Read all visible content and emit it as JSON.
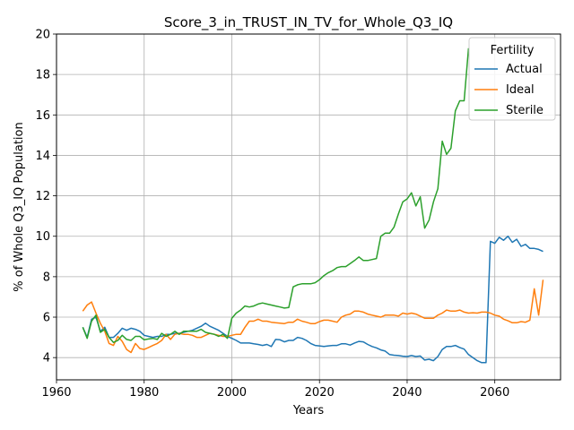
{
  "chart_data": {
    "type": "line",
    "title": "Score_3_in_TRUST_IN_TV_for_Whole_Q3_IQ",
    "xlabel": "Years",
    "ylabel": "% of Whole Q3_IQ Population",
    "xlim": [
      1960,
      2075
    ],
    "ylim": [
      2.9,
      20.0
    ],
    "x_ticks": [
      1960,
      1980,
      2000,
      2020,
      2040,
      2060
    ],
    "y_ticks": [
      4,
      6,
      8,
      10,
      12,
      14,
      16,
      18,
      20
    ],
    "grid": true,
    "legend": {
      "title": "Fertility",
      "position": "top-right"
    },
    "series": [
      {
        "name": "Actual",
        "color": "#1f77b4",
        "points": [
          [
            1966,
            5.5
          ],
          [
            1967,
            5.0
          ],
          [
            1968,
            5.9
          ],
          [
            1969,
            6.0
          ],
          [
            1970,
            5.3
          ],
          [
            1971,
            5.5
          ],
          [
            1972,
            5.0
          ],
          [
            1973,
            5.0
          ],
          [
            1974,
            5.2
          ],
          [
            1975,
            5.45
          ],
          [
            1976,
            5.35
          ],
          [
            1977,
            5.45
          ],
          [
            1978,
            5.4
          ],
          [
            1979,
            5.3
          ],
          [
            1980,
            5.1
          ],
          [
            1981,
            5.05
          ],
          [
            1982,
            5.0
          ],
          [
            1983,
            5.05
          ],
          [
            1984,
            5.05
          ],
          [
            1985,
            5.15
          ],
          [
            1986,
            5.15
          ],
          [
            1987,
            5.2
          ],
          [
            1988,
            5.2
          ],
          [
            1989,
            5.25
          ],
          [
            1990,
            5.3
          ],
          [
            1991,
            5.35
          ],
          [
            1992,
            5.45
          ],
          [
            1993,
            5.55
          ],
          [
            1994,
            5.7
          ],
          [
            1995,
            5.55
          ],
          [
            1996,
            5.45
          ],
          [
            1997,
            5.35
          ],
          [
            1998,
            5.2
          ],
          [
            1999,
            5.05
          ],
          [
            2000,
            4.95
          ],
          [
            2001,
            4.85
          ],
          [
            2002,
            4.72
          ],
          [
            2003,
            4.72
          ],
          [
            2004,
            4.72
          ],
          [
            2005,
            4.68
          ],
          [
            2006,
            4.65
          ],
          [
            2007,
            4.6
          ],
          [
            2008,
            4.65
          ],
          [
            2009,
            4.55
          ],
          [
            2010,
            4.9
          ],
          [
            2011,
            4.88
          ],
          [
            2012,
            4.78
          ],
          [
            2013,
            4.85
          ],
          [
            2014,
            4.85
          ],
          [
            2015,
            5.0
          ],
          [
            2016,
            4.95
          ],
          [
            2017,
            4.85
          ],
          [
            2018,
            4.7
          ],
          [
            2019,
            4.6
          ],
          [
            2020,
            4.58
          ],
          [
            2021,
            4.55
          ],
          [
            2022,
            4.58
          ],
          [
            2023,
            4.6
          ],
          [
            2024,
            4.6
          ],
          [
            2025,
            4.68
          ],
          [
            2026,
            4.68
          ],
          [
            2027,
            4.62
          ],
          [
            2028,
            4.72
          ],
          [
            2029,
            4.8
          ],
          [
            2030,
            4.78
          ],
          [
            2031,
            4.65
          ],
          [
            2032,
            4.55
          ],
          [
            2033,
            4.48
          ],
          [
            2034,
            4.38
          ],
          [
            2035,
            4.32
          ],
          [
            2036,
            4.15
          ],
          [
            2037,
            4.12
          ],
          [
            2038,
            4.1
          ],
          [
            2039,
            4.07
          ],
          [
            2040,
            4.05
          ],
          [
            2041,
            4.1
          ],
          [
            2042,
            4.05
          ],
          [
            2043,
            4.08
          ],
          [
            2044,
            3.88
          ],
          [
            2045,
            3.92
          ],
          [
            2046,
            3.85
          ],
          [
            2047,
            4.05
          ],
          [
            2048,
            4.4
          ],
          [
            2049,
            4.55
          ],
          [
            2050,
            4.55
          ],
          [
            2051,
            4.6
          ],
          [
            2052,
            4.5
          ],
          [
            2053,
            4.42
          ],
          [
            2054,
            4.15
          ],
          [
            2055,
            4.0
          ],
          [
            2056,
            3.85
          ],
          [
            2057,
            3.75
          ],
          [
            2058,
            3.75
          ],
          [
            2059,
            9.75
          ],
          [
            2060,
            9.65
          ],
          [
            2061,
            9.95
          ],
          [
            2062,
            9.8
          ],
          [
            2063,
            10.0
          ],
          [
            2064,
            9.7
          ],
          [
            2065,
            9.85
          ],
          [
            2066,
            9.5
          ],
          [
            2067,
            9.6
          ],
          [
            2068,
            9.4
          ],
          [
            2069,
            9.4
          ],
          [
            2070,
            9.35
          ],
          [
            2071,
            9.25
          ]
        ]
      },
      {
        "name": "Ideal",
        "color": "#ff7f0e",
        "points": [
          [
            1966,
            6.3
          ],
          [
            1967,
            6.6
          ],
          [
            1968,
            6.75
          ],
          [
            1969,
            6.2
          ],
          [
            1970,
            5.7
          ],
          [
            1971,
            5.3
          ],
          [
            1972,
            4.7
          ],
          [
            1973,
            4.6
          ],
          [
            1974,
            5.05
          ],
          [
            1975,
            4.8
          ],
          [
            1976,
            4.4
          ],
          [
            1977,
            4.25
          ],
          [
            1978,
            4.7
          ],
          [
            1979,
            4.45
          ],
          [
            1980,
            4.4
          ],
          [
            1981,
            4.5
          ],
          [
            1982,
            4.6
          ],
          [
            1983,
            4.7
          ],
          [
            1984,
            4.85
          ],
          [
            1985,
            5.15
          ],
          [
            1986,
            4.9
          ],
          [
            1987,
            5.15
          ],
          [
            1988,
            5.2
          ],
          [
            1989,
            5.15
          ],
          [
            1990,
            5.15
          ],
          [
            1991,
            5.1
          ],
          [
            1992,
            5.0
          ],
          [
            1993,
            5.0
          ],
          [
            1994,
            5.1
          ],
          [
            1995,
            5.2
          ],
          [
            1996,
            5.15
          ],
          [
            1997,
            5.1
          ],
          [
            1998,
            5.05
          ],
          [
            1999,
            5.05
          ],
          [
            2000,
            5.1
          ],
          [
            2001,
            5.15
          ],
          [
            2002,
            5.15
          ],
          [
            2003,
            5.5
          ],
          [
            2004,
            5.8
          ],
          [
            2005,
            5.8
          ],
          [
            2006,
            5.9
          ],
          [
            2007,
            5.8
          ],
          [
            2008,
            5.8
          ],
          [
            2009,
            5.75
          ],
          [
            2010,
            5.72
          ],
          [
            2011,
            5.7
          ],
          [
            2012,
            5.68
          ],
          [
            2013,
            5.75
          ],
          [
            2014,
            5.75
          ],
          [
            2015,
            5.9
          ],
          [
            2016,
            5.8
          ],
          [
            2017,
            5.75
          ],
          [
            2018,
            5.68
          ],
          [
            2019,
            5.68
          ],
          [
            2020,
            5.78
          ],
          [
            2021,
            5.85
          ],
          [
            2022,
            5.85
          ],
          [
            2023,
            5.8
          ],
          [
            2024,
            5.75
          ],
          [
            2025,
            6.0
          ],
          [
            2026,
            6.1
          ],
          [
            2027,
            6.15
          ],
          [
            2028,
            6.3
          ],
          [
            2029,
            6.3
          ],
          [
            2030,
            6.25
          ],
          [
            2031,
            6.15
          ],
          [
            2032,
            6.1
          ],
          [
            2033,
            6.05
          ],
          [
            2034,
            6.0
          ],
          [
            2035,
            6.1
          ],
          [
            2036,
            6.1
          ],
          [
            2037,
            6.1
          ],
          [
            2038,
            6.05
          ],
          [
            2039,
            6.2
          ],
          [
            2040,
            6.15
          ],
          [
            2041,
            6.2
          ],
          [
            2042,
            6.15
          ],
          [
            2043,
            6.05
          ],
          [
            2044,
            5.95
          ],
          [
            2045,
            5.95
          ],
          [
            2046,
            5.95
          ],
          [
            2047,
            6.1
          ],
          [
            2048,
            6.2
          ],
          [
            2049,
            6.35
          ],
          [
            2050,
            6.3
          ],
          [
            2051,
            6.3
          ],
          [
            2052,
            6.35
          ],
          [
            2053,
            6.25
          ],
          [
            2054,
            6.2
          ],
          [
            2055,
            6.22
          ],
          [
            2056,
            6.2
          ],
          [
            2057,
            6.25
          ],
          [
            2058,
            6.25
          ],
          [
            2059,
            6.2
          ],
          [
            2060,
            6.1
          ],
          [
            2061,
            6.05
          ],
          [
            2062,
            5.9
          ],
          [
            2063,
            5.82
          ],
          [
            2064,
            5.72
          ],
          [
            2065,
            5.72
          ],
          [
            2066,
            5.78
          ],
          [
            2067,
            5.75
          ],
          [
            2068,
            5.85
          ],
          [
            2069,
            7.4
          ],
          [
            2070,
            6.1
          ],
          [
            2071,
            7.85
          ]
        ]
      },
      {
        "name": "Sterile",
        "color": "#2ca02c",
        "points": [
          [
            1966,
            5.5
          ],
          [
            1967,
            4.95
          ],
          [
            1968,
            5.8
          ],
          [
            1969,
            6.1
          ],
          [
            1970,
            5.25
          ],
          [
            1971,
            5.4
          ],
          [
            1972,
            5.0
          ],
          [
            1973,
            4.75
          ],
          [
            1974,
            4.85
          ],
          [
            1975,
            5.1
          ],
          [
            1976,
            4.9
          ],
          [
            1977,
            4.85
          ],
          [
            1978,
            5.05
          ],
          [
            1979,
            5.05
          ],
          [
            1980,
            4.88
          ],
          [
            1981,
            4.92
          ],
          [
            1982,
            4.95
          ],
          [
            1983,
            4.9
          ],
          [
            1984,
            5.2
          ],
          [
            1985,
            5.05
          ],
          [
            1986,
            5.15
          ],
          [
            1987,
            5.3
          ],
          [
            1988,
            5.15
          ],
          [
            1989,
            5.3
          ],
          [
            1990,
            5.3
          ],
          [
            1991,
            5.3
          ],
          [
            1992,
            5.3
          ],
          [
            1993,
            5.4
          ],
          [
            1994,
            5.25
          ],
          [
            1995,
            5.2
          ],
          [
            1996,
            5.15
          ],
          [
            1997,
            5.05
          ],
          [
            1998,
            5.15
          ],
          [
            1999,
            4.95
          ],
          [
            2000,
            5.95
          ],
          [
            2001,
            6.2
          ],
          [
            2002,
            6.35
          ],
          [
            2003,
            6.55
          ],
          [
            2004,
            6.5
          ],
          [
            2005,
            6.55
          ],
          [
            2006,
            6.65
          ],
          [
            2007,
            6.7
          ],
          [
            2008,
            6.65
          ],
          [
            2009,
            6.6
          ],
          [
            2010,
            6.55
          ],
          [
            2011,
            6.5
          ],
          [
            2012,
            6.45
          ],
          [
            2013,
            6.48
          ],
          [
            2014,
            7.5
          ],
          [
            2015,
            7.6
          ],
          [
            2016,
            7.65
          ],
          [
            2017,
            7.65
          ],
          [
            2018,
            7.65
          ],
          [
            2019,
            7.7
          ],
          [
            2020,
            7.85
          ],
          [
            2021,
            8.05
          ],
          [
            2022,
            8.2
          ],
          [
            2023,
            8.3
          ],
          [
            2024,
            8.45
          ],
          [
            2025,
            8.5
          ],
          [
            2026,
            8.5
          ],
          [
            2027,
            8.65
          ],
          [
            2028,
            8.8
          ],
          [
            2029,
            8.98
          ],
          [
            2030,
            8.8
          ],
          [
            2031,
            8.8
          ],
          [
            2032,
            8.85
          ],
          [
            2033,
            8.9
          ],
          [
            2034,
            10.0
          ],
          [
            2035,
            10.15
          ],
          [
            2036,
            10.15
          ],
          [
            2037,
            10.45
          ],
          [
            2038,
            11.1
          ],
          [
            2039,
            11.7
          ],
          [
            2040,
            11.85
          ],
          [
            2041,
            12.15
          ],
          [
            2042,
            11.5
          ],
          [
            2043,
            11.95
          ],
          [
            2044,
            10.4
          ],
          [
            2045,
            10.8
          ],
          [
            2046,
            11.7
          ],
          [
            2047,
            12.35
          ],
          [
            2048,
            14.7
          ],
          [
            2049,
            14.05
          ],
          [
            2050,
            14.35
          ],
          [
            2051,
            16.2
          ],
          [
            2052,
            16.7
          ],
          [
            2053,
            16.7
          ],
          [
            2054,
            19.3
          ]
        ]
      }
    ]
  }
}
